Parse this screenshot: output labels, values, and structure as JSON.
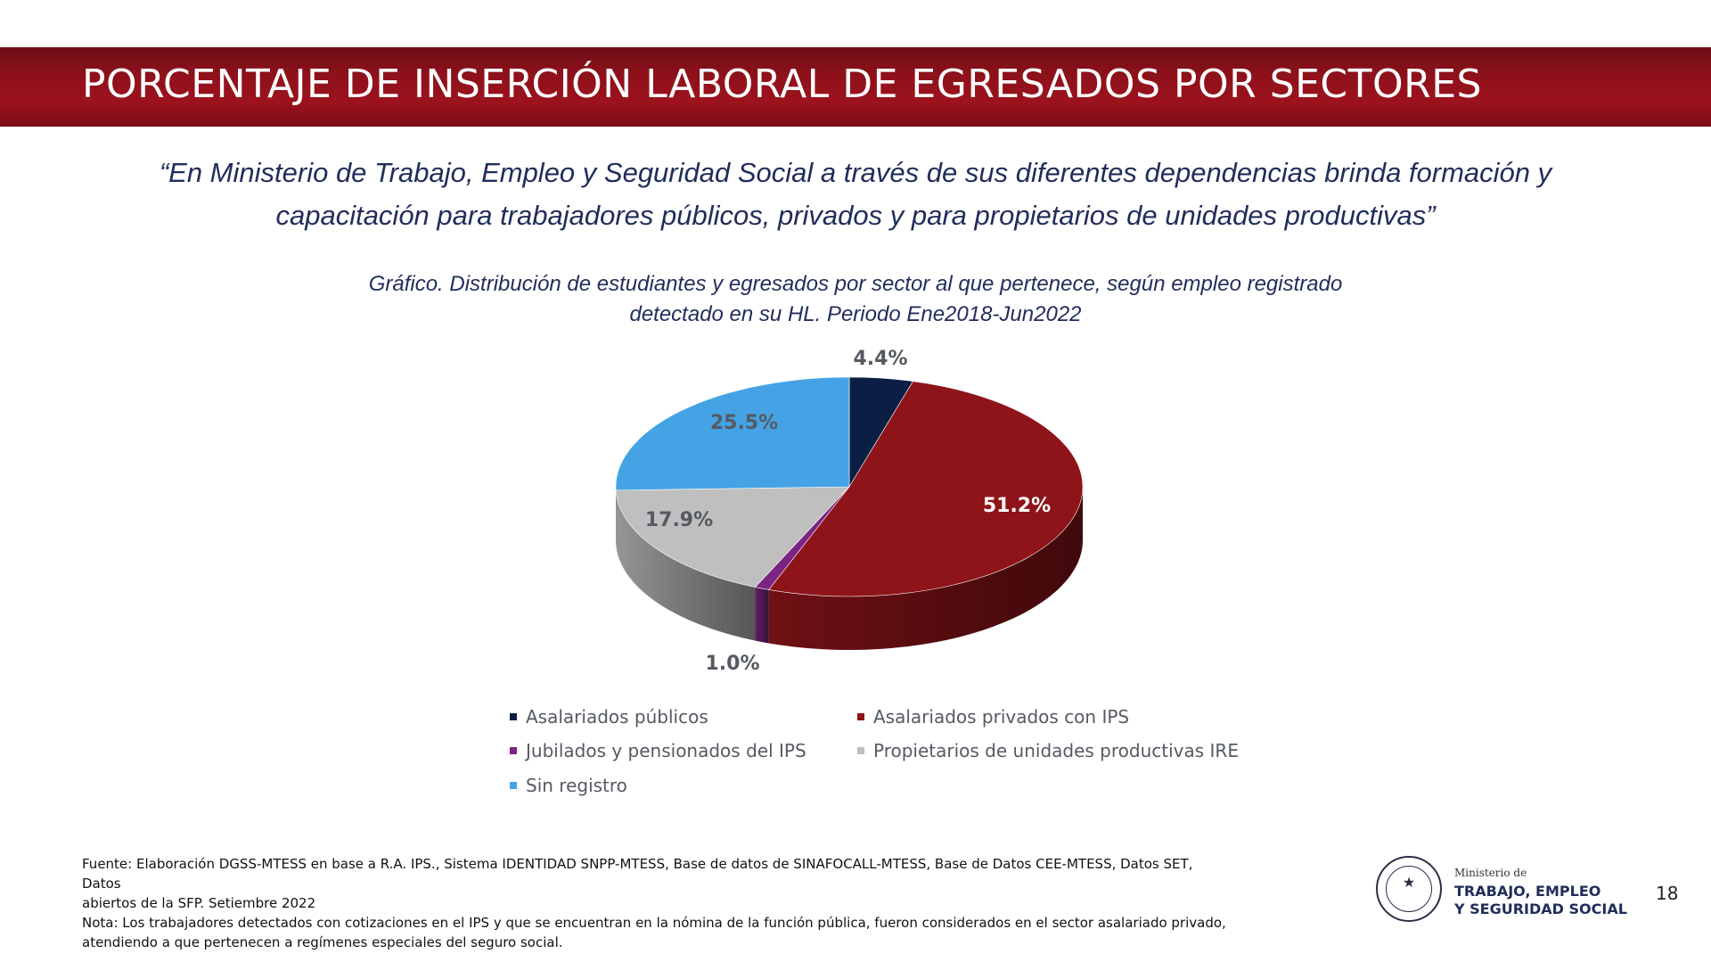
{
  "header": {
    "title": "PORCENTAJE DE INSERCIÓN LABORAL DE EGRESADOS POR SECTORES"
  },
  "quote": {
    "text": "“En Ministerio de Trabajo, Empleo y Seguridad Social a través de sus diferentes dependencias brinda formación y capacitación para trabajadores públicos, privados y para propietarios de unidades productivas”"
  },
  "chart_data": {
    "type": "pie",
    "title_line1": "Gráfico. Distribución de estudiantes y egresados por sector al que pertenece, según empleo registrado",
    "title_line2": "detectado en su HL. Periodo Ene2018-Jun2022",
    "style": "3d",
    "legend_position": "bottom",
    "categories": [
      "Asalariados públicos",
      "Asalariados privados con IPS",
      "Jubilados y pensionados del IPS",
      "Propietarios de unidades productivas IRE",
      "Sin registro"
    ],
    "values": [
      4.4,
      51.2,
      1.0,
      17.9,
      25.5
    ],
    "labels": [
      "4.4%",
      "51.2%",
      "1.0%",
      "17.9%",
      "25.5%"
    ],
    "colors": [
      "#0b1f44",
      "#8e1419",
      "#7b2582",
      "#bfbfbf",
      "#45a3e5"
    ]
  },
  "footer": {
    "source_line1": "Fuente: Elaboración DGSS-MTESS en base a R.A. IPS., Sistema IDENTIDAD SNPP-MTESS, Base de datos de SINAFOCALL-MTESS, Base de Datos CEE-MTESS,  Datos SET,  Datos",
    "source_line2": "abiertos de la SFP. Setiembre 2022",
    "note_line1": "Nota: Los trabajadores detectados con cotizaciones en el IPS y que se encuentran en la nómina de la función pública, fueron considerados en el sector asalariado privado,",
    "note_line2": "atendiendo a que pertenecen a regímenes especiales del seguro social."
  },
  "logo": {
    "line_small": "Ministerio de",
    "line1": "TRABAJO, EMPLEO",
    "line2": "Y SEGURIDAD SOCIAL"
  },
  "page_number": "18"
}
